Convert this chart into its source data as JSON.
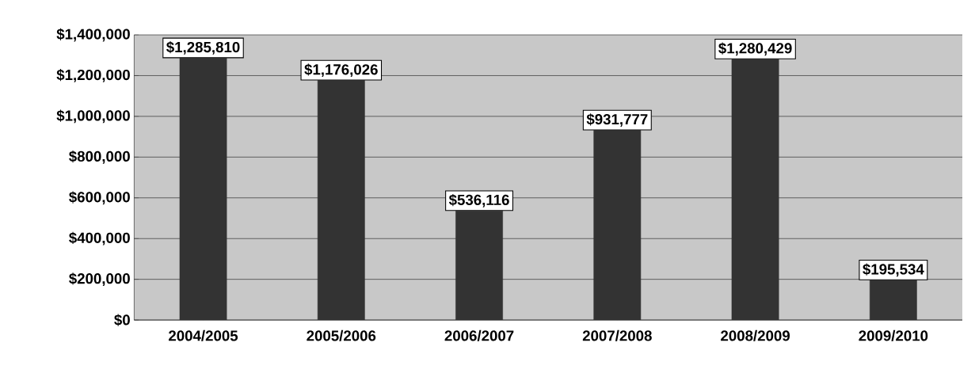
{
  "chart_data": {
    "type": "bar",
    "categories": [
      "2004/2005",
      "2005/2006",
      "2006/2007",
      "2007/2008",
      "2008/2009",
      "2009/2010"
    ],
    "values": [
      1285810,
      1176026,
      536116,
      931777,
      1280429,
      195534
    ],
    "value_labels": [
      "$1,285,810",
      "$1,176,026",
      "$536,116",
      "$931,777",
      "$1,280,429",
      "$195,534"
    ],
    "color": "#333333",
    "ylim": [
      0,
      1400000
    ],
    "yticks": [
      {
        "value": 0,
        "label": "$0"
      },
      {
        "value": 200000,
        "label": "$200,000"
      },
      {
        "value": 400000,
        "label": "$400,000"
      },
      {
        "value": 600000,
        "label": "$600,000"
      },
      {
        "value": 800000,
        "label": "$800,000"
      },
      {
        "value": 1000000,
        "label": "$1,000,000"
      },
      {
        "value": 1200000,
        "label": "$1,200,000"
      },
      {
        "value": 1400000,
        "label": "$1,400,000"
      }
    ],
    "grid": "y"
  }
}
